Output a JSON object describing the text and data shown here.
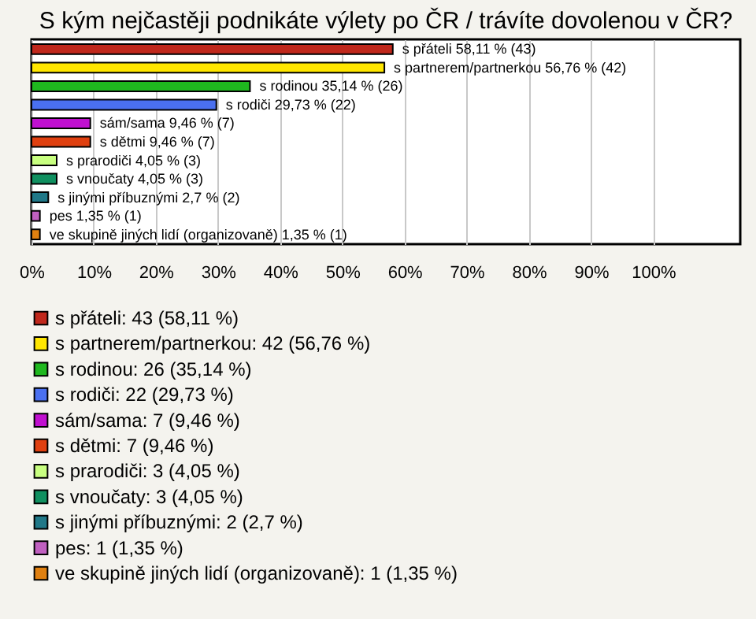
{
  "chart_data": {
    "type": "bar",
    "orientation": "horizontal",
    "title": "S kým nejčastěji podnikáte výlety po ČR / trávíte dovolenou v ČR?",
    "categories": [
      null,
      null,
      null,
      null,
      null,
      null,
      null,
      null,
      null,
      null,
      null
    ],
    "series": [
      {
        "name": "s přáteli: 43 (58,11 %)",
        "color": "#c0281c",
        "values": [
          58.11,
          null,
          null,
          null,
          null,
          null,
          null,
          null,
          null,
          null,
          null
        ],
        "value_labels": [
          "s přáteli 58,11 % (43)",
          null,
          null,
          null,
          null,
          null,
          null,
          null,
          null,
          null,
          null
        ]
      },
      {
        "name": "s partnerem/partnerkou: 42 (56,76 %)",
        "color": "#ffe600",
        "values": [
          null,
          56.76,
          null,
          null,
          null,
          null,
          null,
          null,
          null,
          null,
          null
        ],
        "value_labels": [
          null,
          "s partnerem/partnerkou 56,76 % (42)",
          null,
          null,
          null,
          null,
          null,
          null,
          null,
          null,
          null
        ]
      },
      {
        "name": "s rodinou: 26 (35,14 %)",
        "color": "#1fb81f",
        "values": [
          null,
          null,
          35.14,
          null,
          null,
          null,
          null,
          null,
          null,
          null,
          null
        ],
        "value_labels": [
          null,
          null,
          "s rodinou 35,14 % (26)",
          null,
          null,
          null,
          null,
          null,
          null,
          null,
          null
        ]
      },
      {
        "name": "s rodiči: 22 (29,73 %)",
        "color": "#4a70f0",
        "values": [
          null,
          null,
          null,
          29.73,
          null,
          null,
          null,
          null,
          null,
          null,
          null
        ],
        "value_labels": [
          null,
          null,
          null,
          "s rodiči 29,73 % (22)",
          null,
          null,
          null,
          null,
          null,
          null,
          null
        ]
      },
      {
        "name": "sám/sama: 7 (9,46 %)",
        "color": "#c010d0",
        "values": [
          null,
          null,
          null,
          null,
          9.46,
          null,
          null,
          null,
          null,
          null,
          null
        ],
        "value_labels": [
          null,
          null,
          null,
          null,
          "sám/sama 9,46 % (7)",
          null,
          null,
          null,
          null,
          null,
          null
        ]
      },
      {
        "name": "s dětmi: 7 (9,46 %)",
        "color": "#e04010",
        "values": [
          null,
          null,
          null,
          null,
          null,
          9.46,
          null,
          null,
          null,
          null,
          null
        ],
        "value_labels": [
          null,
          null,
          null,
          null,
          null,
          "s dětmi 9,46 % (7)",
          null,
          null,
          null,
          null,
          null
        ]
      },
      {
        "name": "s prarodiči: 3 (4,05 %)",
        "color": "#c8ff80",
        "values": [
          null,
          null,
          null,
          null,
          null,
          null,
          4.05,
          null,
          null,
          null,
          null
        ],
        "value_labels": [
          null,
          null,
          null,
          null,
          null,
          null,
          "s prarodiči 4,05 % (3)",
          null,
          null,
          null,
          null
        ]
      },
      {
        "name": "s vnoučaty: 3 (4,05 %)",
        "color": "#109060",
        "values": [
          null,
          null,
          null,
          null,
          null,
          null,
          null,
          4.05,
          null,
          null,
          null
        ],
        "value_labels": [
          null,
          null,
          null,
          null,
          null,
          null,
          null,
          "s vnoučaty 4,05 % (3)",
          null,
          null,
          null
        ]
      },
      {
        "name": "s jinými příbuznými: 2 (2,7 %)",
        "color": "#207888",
        "values": [
          null,
          null,
          null,
          null,
          null,
          null,
          null,
          null,
          2.7,
          null,
          null
        ],
        "value_labels": [
          null,
          null,
          null,
          null,
          null,
          null,
          null,
          null,
          "s jinými příbuznými 2,7 % (2)",
          null,
          null
        ]
      },
      {
        "name": "pes: 1 (1,35 %)",
        "color": "#c060c0",
        "values": [
          null,
          null,
          null,
          null,
          null,
          null,
          null,
          null,
          null,
          1.35,
          null
        ],
        "value_labels": [
          null,
          null,
          null,
          null,
          null,
          null,
          null,
          null,
          null,
          "pes 1,35 % (1)",
          null
        ]
      },
      {
        "name": "ve skupině jiných lidí (organizovaně): 1 (1,35 %)",
        "color": "#e08010",
        "values": [
          null,
          null,
          null,
          null,
          null,
          null,
          null,
          null,
          null,
          null,
          1.35
        ],
        "value_labels": [
          null,
          null,
          null,
          null,
          null,
          null,
          null,
          null,
          null,
          null,
          "ve skupině jiných lidí (organizovaně) 1,35 % (1)"
        ]
      }
    ],
    "xlim": [
      0,
      114
    ],
    "xticks": [
      {
        "value": 0,
        "label": "0%"
      },
      {
        "value": 10,
        "label": "10%"
      },
      {
        "value": 20,
        "label": "20%"
      },
      {
        "value": 30,
        "label": "30%"
      },
      {
        "value": 40,
        "label": "40%"
      },
      {
        "value": 50,
        "label": "50%"
      },
      {
        "value": 60,
        "label": "60%"
      },
      {
        "value": 70,
        "label": "70%"
      },
      {
        "value": 80,
        "label": "80%"
      },
      {
        "value": 90,
        "label": "90%"
      },
      {
        "value": 100,
        "label": "100%"
      }
    ],
    "grid": "x",
    "legend": "bottom",
    "tick_labels": "x"
  }
}
